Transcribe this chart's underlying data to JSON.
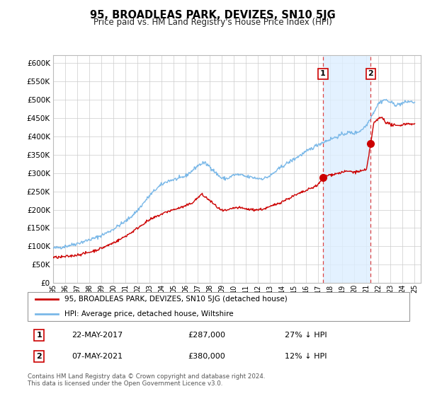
{
  "title": "95, BROADLEAS PARK, DEVIZES, SN10 5JG",
  "subtitle": "Price paid vs. HM Land Registry's House Price Index (HPI)",
  "ylim": [
    0,
    620000
  ],
  "yticks": [
    0,
    50000,
    100000,
    150000,
    200000,
    250000,
    300000,
    350000,
    400000,
    450000,
    500000,
    550000,
    600000
  ],
  "hpi_color": "#7ab8e8",
  "price_color": "#cc0000",
  "vline_color": "#dd4444",
  "shade_color": "#ddeeff",
  "marker1_value": 287000,
  "marker2_value": 380000,
  "sale1_year": 2017.385,
  "sale2_year": 2021.345,
  "legend_label1": "95, BROADLEAS PARK, DEVIZES, SN10 5JG (detached house)",
  "legend_label2": "HPI: Average price, detached house, Wiltshire",
  "annotation1_date": "22-MAY-2017",
  "annotation1_price": "£287,000",
  "annotation1_hpi": "27% ↓ HPI",
  "annotation2_date": "07-MAY-2021",
  "annotation2_price": "£380,000",
  "annotation2_hpi": "12% ↓ HPI",
  "footer": "Contains HM Land Registry data © Crown copyright and database right 2024.\nThis data is licensed under the Open Government Licence v3.0.",
  "bg_color": "white",
  "grid_color": "#cccccc"
}
